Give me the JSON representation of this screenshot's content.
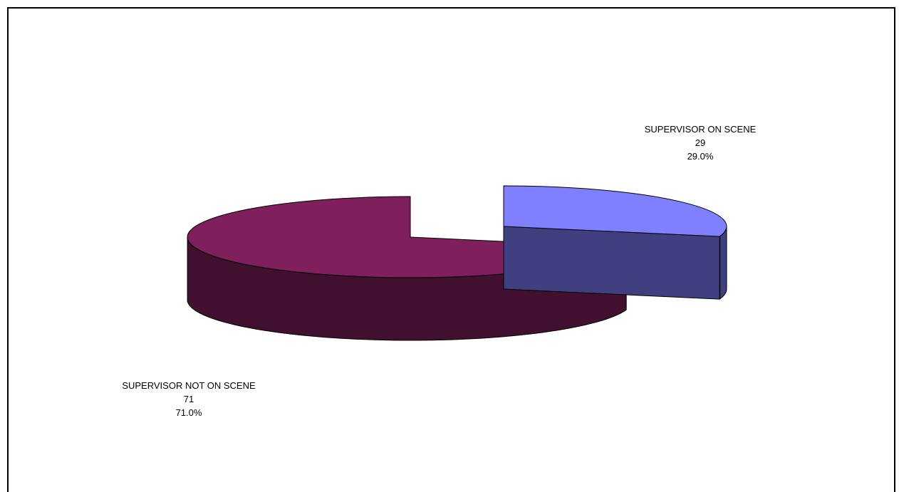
{
  "chart_data": {
    "type": "pie",
    "style": "3d-exploded",
    "title": "",
    "slices": [
      {
        "label": "SUPERVISOR ON SCENE",
        "value": 29,
        "percent": "29.0%",
        "color": "#8080ff",
        "side_color": "#404080"
      },
      {
        "label": "SUPERVISOR NOT ON SCENE",
        "value": 71,
        "percent": "71.0%",
        "color": "#7f1f5c",
        "side_color": "#40102e"
      }
    ],
    "legend": "none"
  }
}
